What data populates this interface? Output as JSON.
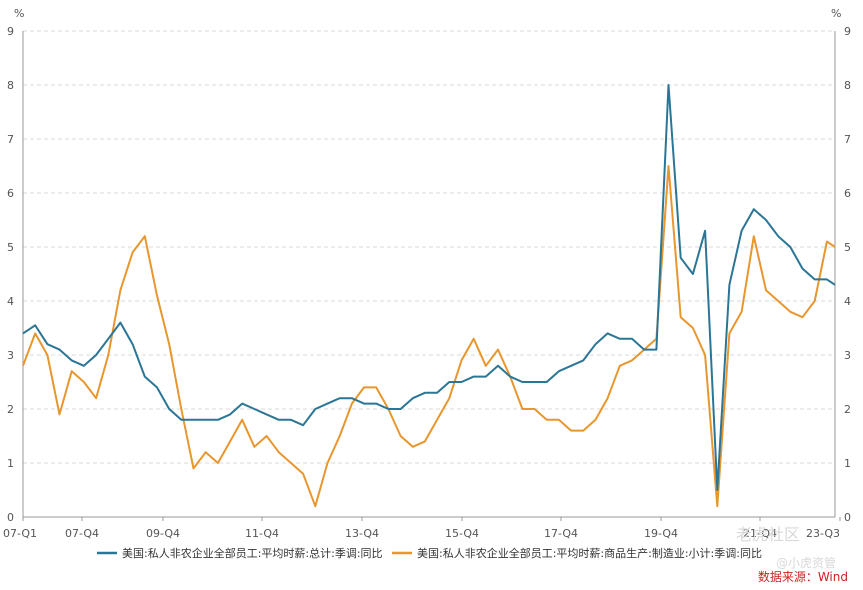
{
  "chart_data": {
    "type": "line",
    "y_unit_left": "%",
    "y_unit_right": "%",
    "ylim": [
      0,
      9
    ],
    "yticks": [
      "0",
      "1",
      "2",
      "3",
      "4",
      "5",
      "6",
      "7",
      "8",
      "9"
    ],
    "xticks": [
      "07-Q1",
      "07-Q4",
      "09-Q4",
      "11-Q4",
      "13-Q4",
      "15-Q4",
      "17-Q4",
      "19-Q4",
      "21-Q4",
      "23-Q3"
    ],
    "x_range": [
      "2007-01",
      "2023-09"
    ],
    "grid": "horizontal-dashed",
    "legend_position": "bottom",
    "colors": {
      "series_1": "#2b7595",
      "series_2": "#e8962e"
    },
    "series": [
      {
        "name": "美国:私人非农企业全部员工:平均时薪:总计:季调:同比",
        "points": [
          [
            "2007-01",
            3.4
          ],
          [
            "2007-04",
            3.55
          ],
          [
            "2007-07",
            3.2
          ],
          [
            "2007-10",
            3.1
          ],
          [
            "2008-01",
            2.9
          ],
          [
            "2008-04",
            2.8
          ],
          [
            "2008-07",
            3.0
          ],
          [
            "2008-10",
            3.3
          ],
          [
            "2009-01",
            3.6
          ],
          [
            "2009-04",
            3.2
          ],
          [
            "2009-07",
            2.6
          ],
          [
            "2009-10",
            2.4
          ],
          [
            "2010-01",
            2.0
          ],
          [
            "2010-04",
            1.8
          ],
          [
            "2010-07",
            1.8
          ],
          [
            "2010-10",
            1.8
          ],
          [
            "2011-01",
            1.8
          ],
          [
            "2011-04",
            1.9
          ],
          [
            "2011-07",
            2.1
          ],
          [
            "2011-10",
            2.0
          ],
          [
            "2012-01",
            1.9
          ],
          [
            "2012-04",
            1.8
          ],
          [
            "2012-07",
            1.8
          ],
          [
            "2012-10",
            1.7
          ],
          [
            "2013-01",
            2.0
          ],
          [
            "2013-04",
            2.1
          ],
          [
            "2013-07",
            2.2
          ],
          [
            "2013-10",
            2.2
          ],
          [
            "2014-01",
            2.1
          ],
          [
            "2014-04",
            2.1
          ],
          [
            "2014-07",
            2.0
          ],
          [
            "2014-10",
            2.0
          ],
          [
            "2015-01",
            2.2
          ],
          [
            "2015-04",
            2.3
          ],
          [
            "2015-07",
            2.3
          ],
          [
            "2015-10",
            2.5
          ],
          [
            "2016-01",
            2.5
          ],
          [
            "2016-04",
            2.6
          ],
          [
            "2016-07",
            2.6
          ],
          [
            "2016-10",
            2.8
          ],
          [
            "2017-01",
            2.6
          ],
          [
            "2017-04",
            2.5
          ],
          [
            "2017-07",
            2.5
          ],
          [
            "2017-10",
            2.5
          ],
          [
            "2018-01",
            2.7
          ],
          [
            "2018-04",
            2.8
          ],
          [
            "2018-07",
            2.9
          ],
          [
            "2018-10",
            3.2
          ],
          [
            "2019-01",
            3.4
          ],
          [
            "2019-04",
            3.3
          ],
          [
            "2019-07",
            3.3
          ],
          [
            "2019-10",
            3.1
          ],
          [
            "2020-01",
            3.1
          ],
          [
            "2020-04",
            8.0
          ],
          [
            "2020-07",
            4.8
          ],
          [
            "2020-10",
            4.5
          ],
          [
            "2021-01",
            5.3
          ],
          [
            "2021-04",
            0.5
          ],
          [
            "2021-07",
            4.3
          ],
          [
            "2021-10",
            5.3
          ],
          [
            "2022-01",
            5.7
          ],
          [
            "2022-04",
            5.5
          ],
          [
            "2022-07",
            5.2
          ],
          [
            "2022-10",
            5.0
          ],
          [
            "2023-01",
            4.6
          ],
          [
            "2023-04",
            4.4
          ],
          [
            "2023-07",
            4.4
          ],
          [
            "2023-09",
            4.3
          ]
        ]
      },
      {
        "name": "美国:私人非农企业全部员工:平均时薪:商品生产:制造业:小计:季调:同比",
        "points": [
          [
            "2007-01",
            2.8
          ],
          [
            "2007-04",
            3.4
          ],
          [
            "2007-07",
            3.0
          ],
          [
            "2007-10",
            1.9
          ],
          [
            "2008-01",
            2.7
          ],
          [
            "2008-04",
            2.5
          ],
          [
            "2008-07",
            2.2
          ],
          [
            "2008-10",
            3.0
          ],
          [
            "2009-01",
            4.2
          ],
          [
            "2009-04",
            4.9
          ],
          [
            "2009-07",
            5.2
          ],
          [
            "2009-10",
            4.1
          ],
          [
            "2010-01",
            3.2
          ],
          [
            "2010-04",
            2.0
          ],
          [
            "2010-07",
            0.9
          ],
          [
            "2010-10",
            1.2
          ],
          [
            "2011-01",
            1.0
          ],
          [
            "2011-04",
            1.4
          ],
          [
            "2011-07",
            1.8
          ],
          [
            "2011-10",
            1.3
          ],
          [
            "2012-01",
            1.5
          ],
          [
            "2012-04",
            1.2
          ],
          [
            "2012-07",
            1.0
          ],
          [
            "2012-10",
            0.8
          ],
          [
            "2013-01",
            0.2
          ],
          [
            "2013-04",
            1.0
          ],
          [
            "2013-07",
            1.5
          ],
          [
            "2013-10",
            2.1
          ],
          [
            "2014-01",
            2.4
          ],
          [
            "2014-04",
            2.4
          ],
          [
            "2014-07",
            2.0
          ],
          [
            "2014-10",
            1.5
          ],
          [
            "2015-01",
            1.3
          ],
          [
            "2015-04",
            1.4
          ],
          [
            "2015-07",
            1.8
          ],
          [
            "2015-10",
            2.2
          ],
          [
            "2016-01",
            2.9
          ],
          [
            "2016-04",
            3.3
          ],
          [
            "2016-07",
            2.8
          ],
          [
            "2016-10",
            3.1
          ],
          [
            "2017-01",
            2.6
          ],
          [
            "2017-04",
            2.0
          ],
          [
            "2017-07",
            2.0
          ],
          [
            "2017-10",
            1.8
          ],
          [
            "2018-01",
            1.8
          ],
          [
            "2018-04",
            1.6
          ],
          [
            "2018-07",
            1.6
          ],
          [
            "2018-10",
            1.8
          ],
          [
            "2019-01",
            2.2
          ],
          [
            "2019-04",
            2.8
          ],
          [
            "2019-07",
            2.9
          ],
          [
            "2019-10",
            3.1
          ],
          [
            "2020-01",
            3.3
          ],
          [
            "2020-04",
            6.5
          ],
          [
            "2020-07",
            3.7
          ],
          [
            "2020-10",
            3.5
          ],
          [
            "2021-01",
            3.0
          ],
          [
            "2021-04",
            0.2
          ],
          [
            "2021-07",
            3.4
          ],
          [
            "2021-10",
            3.8
          ],
          [
            "2022-01",
            5.2
          ],
          [
            "2022-04",
            4.2
          ],
          [
            "2022-07",
            4.0
          ],
          [
            "2022-10",
            3.8
          ],
          [
            "2023-01",
            3.7
          ],
          [
            "2023-04",
            4.0
          ],
          [
            "2023-07",
            5.1
          ],
          [
            "2023-09",
            5.0
          ]
        ]
      }
    ]
  },
  "source_text": "数据来源：Wind",
  "watermark_1": "老虎社区",
  "watermark_2": "@小虎资管"
}
